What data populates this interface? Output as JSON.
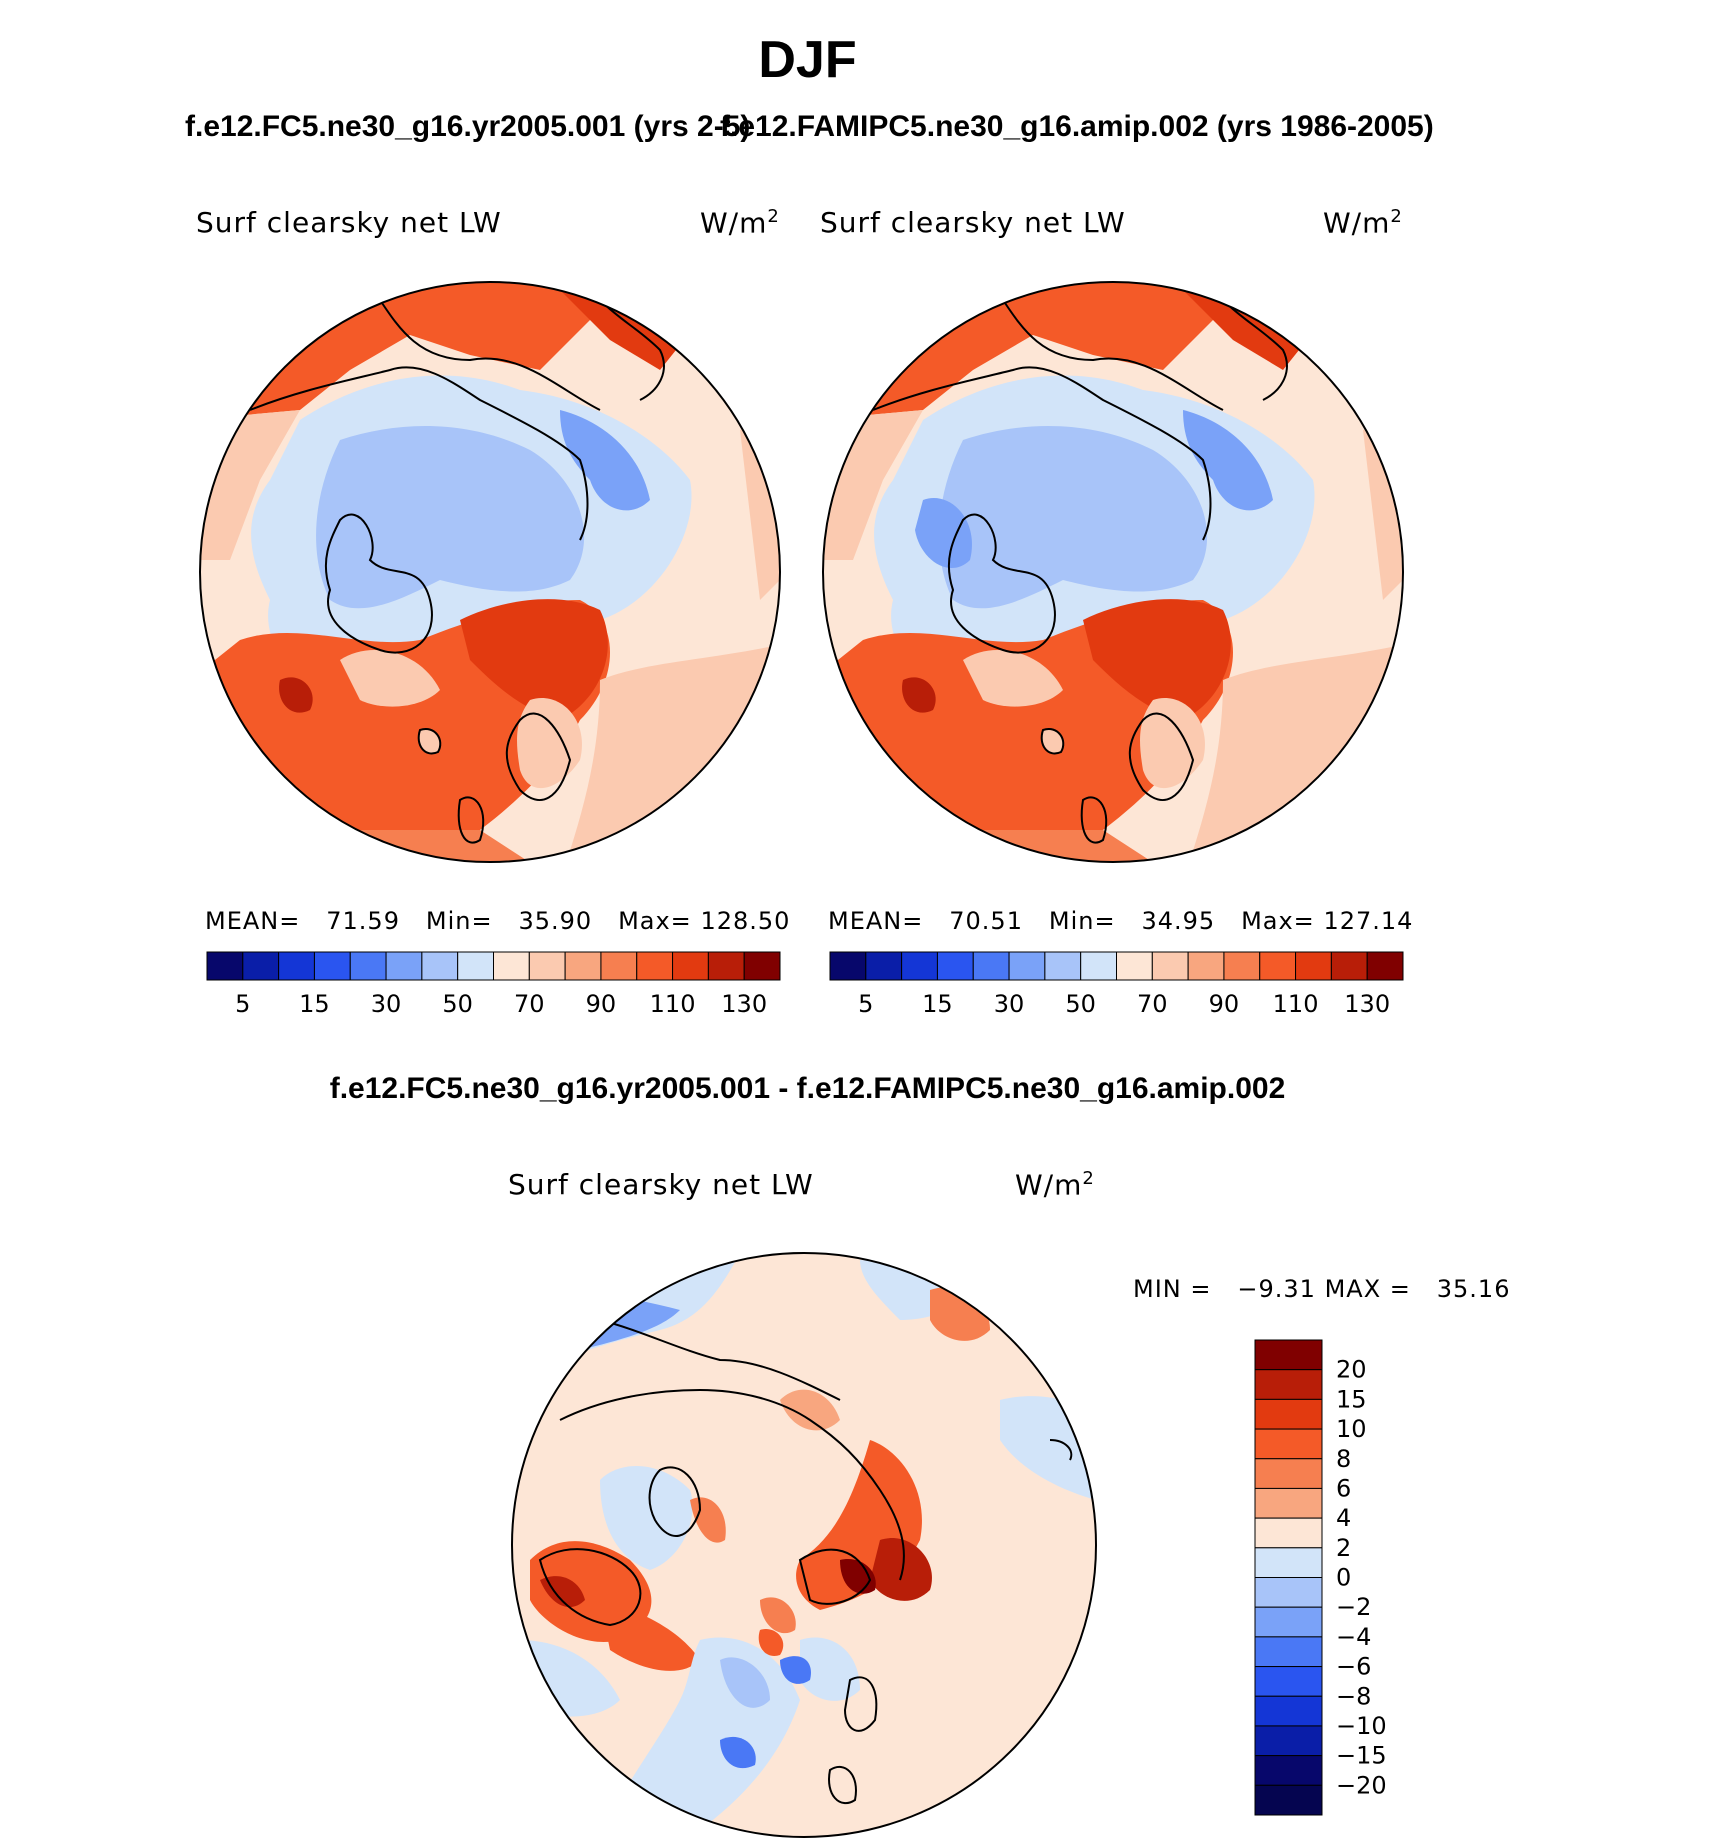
{
  "page_title": "DJF",
  "panels": [
    {
      "case_title": "f.e12.FC5.ne30_g16.yr2005.001 (yrs 2-5)",
      "variable": "Surf clearsky net LW",
      "units": "W/m",
      "units_sup": "2",
      "stats": {
        "mean_label": "MEAN=",
        "mean": "71.59",
        "min_label": "Min=",
        "min": "35.90",
        "max_label": "Max=",
        "max": "128.50"
      }
    },
    {
      "case_title": "f.e12.FAMIPC5.ne30_g16.amip.002 (yrs 1986-2005)",
      "variable": "Surf clearsky net LW",
      "units": "W/m",
      "units_sup": "2",
      "stats": {
        "mean_label": "MEAN=",
        "mean": "70.51",
        "min_label": "Min=",
        "min": "34.95",
        "max_label": "Max=",
        "max": "127.14"
      }
    }
  ],
  "diff_panel": {
    "title": "f.e12.FC5.ne30_g16.yr2005.001 - f.e12.FAMIPC5.ne30_g16.amip.002",
    "variable": "Surf clearsky net LW",
    "units": "W/m",
    "units_sup": "2",
    "minmax": {
      "min_label": "MIN =",
      "min": "−9.31",
      "max_label": "MAX =",
      "max": "35.16"
    }
  },
  "chart_data": [
    {
      "type": "heatmap",
      "projection": "north-polar-stereographic",
      "title": "f.e12.FC5.ne30_g16.yr2005.001 (yrs 2-5)",
      "variable": "Surf clearsky net LW",
      "units": "W/m2",
      "mean": 71.59,
      "min": 35.9,
      "max": 128.5,
      "colorbar_labels": [
        "5",
        "15",
        "30",
        "50",
        "70",
        "90",
        "110",
        "130"
      ],
      "colorbar_colors": [
        "#07076b",
        "#0a1ea8",
        "#1436d6",
        "#2a55f0",
        "#4a78f5",
        "#7aa2f8",
        "#a8c4f9",
        "#d2e4f9",
        "#fde6d6",
        "#fbcab0",
        "#f8a67f",
        "#f67f50",
        "#f45a28",
        "#e23a10",
        "#b81e08",
        "#800000"
      ]
    },
    {
      "type": "heatmap",
      "projection": "north-polar-stereographic",
      "title": "f.e12.FAMIPC5.ne30_g16.amip.002 (yrs 1986-2005)",
      "variable": "Surf clearsky net LW",
      "units": "W/m2",
      "mean": 70.51,
      "min": 34.95,
      "max": 127.14,
      "colorbar_labels": [
        "5",
        "15",
        "30",
        "50",
        "70",
        "90",
        "110",
        "130"
      ],
      "colorbar_colors": [
        "#07076b",
        "#0a1ea8",
        "#1436d6",
        "#2a55f0",
        "#4a78f5",
        "#7aa2f8",
        "#a8c4f9",
        "#d2e4f9",
        "#fde6d6",
        "#fbcab0",
        "#f8a67f",
        "#f67f50",
        "#f45a28",
        "#e23a10",
        "#b81e08",
        "#800000"
      ]
    },
    {
      "type": "heatmap",
      "projection": "north-polar-stereographic",
      "title": "f.e12.FC5.ne30_g16.yr2005.001 - f.e12.FAMIPC5.ne30_g16.amip.002",
      "variable": "Surf clearsky net LW",
      "units": "W/m2",
      "min": -9.31,
      "max": 35.16,
      "colorbar_labels": [
        "20",
        "15",
        "10",
        "8",
        "6",
        "4",
        "2",
        "0",
        "−2",
        "−4",
        "−6",
        "−8",
        "−10",
        "−15",
        "−20"
      ],
      "colorbar_colors": [
        "#800000",
        "#b81e08",
        "#e23a10",
        "#f45a28",
        "#f67f50",
        "#f8a67f",
        "#fde6d6",
        "#d2e4f9",
        "#a8c4f9",
        "#7aa2f8",
        "#4a78f5",
        "#2a55f0",
        "#1436d6",
        "#0a1ea8",
        "#07076b",
        "#050550"
      ]
    }
  ]
}
